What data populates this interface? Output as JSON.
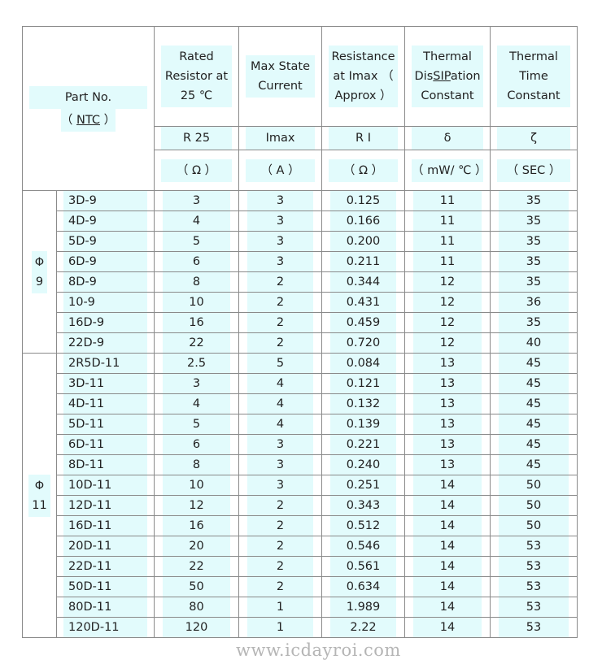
{
  "watermark": "www.icdayroi.com",
  "header": {
    "part_no": "Part No.",
    "part_no_sub": "（ NTC ）",
    "columns": [
      {
        "title": "Rated Resistor at 25 ℃",
        "symbol": "R 25",
        "unit": "（ Ω ）"
      },
      {
        "title": "Max State Current",
        "symbol": "Imax",
        "unit": "（ A ）"
      },
      {
        "title": "Resistance at Imax （ Approx ）",
        "symbol": "R I",
        "unit": "（ Ω ）"
      },
      {
        "title": "Thermal DisSIPation Constant",
        "symbol": "δ",
        "unit": "（ mW/ ℃ ）"
      },
      {
        "title": "Thermal Time Constant",
        "symbol": "ζ",
        "unit": "（ SEC ）"
      }
    ]
  },
  "groups": [
    {
      "label": "Φ 9",
      "rows": [
        [
          "3D-9",
          "3",
          "3",
          "0.125",
          "11",
          "35"
        ],
        [
          "4D-9",
          "4",
          "3",
          "0.166",
          "11",
          "35"
        ],
        [
          "5D-9",
          "5",
          "3",
          "0.200",
          "11",
          "35"
        ],
        [
          "6D-9",
          "6",
          "3",
          "0.211",
          "11",
          "35"
        ],
        [
          "8D-9",
          "8",
          "2",
          "0.344",
          "12",
          "35"
        ],
        [
          "10-9",
          "10",
          "2",
          "0.431",
          "12",
          "36"
        ],
        [
          "16D-9",
          "16",
          "2",
          "0.459",
          "12",
          "35"
        ],
        [
          "22D-9",
          "22",
          "2",
          "0.720",
          "12",
          "40"
        ]
      ]
    },
    {
      "label": "Φ 11",
      "rows": [
        [
          "2R5D-11",
          "2.5",
          "5",
          "0.084",
          "13",
          "45"
        ],
        [
          "3D-11",
          "3",
          "4",
          "0.121",
          "13",
          "45"
        ],
        [
          "4D-11",
          "4",
          "4",
          "0.132",
          "13",
          "45"
        ],
        [
          "5D-11",
          "5",
          "4",
          "0.139",
          "13",
          "45"
        ],
        [
          "6D-11",
          "6",
          "3",
          "0.221",
          "13",
          "45"
        ],
        [
          "8D-11",
          "8",
          "3",
          "0.240",
          "13",
          "45"
        ],
        [
          "10D-11",
          "10",
          "3",
          "0.251",
          "14",
          "50"
        ],
        [
          "12D-11",
          "12",
          "2",
          "0.343",
          "14",
          "50"
        ],
        [
          "16D-11",
          "16",
          "2",
          "0.512",
          "14",
          "50"
        ],
        [
          "20D-11",
          "20",
          "2",
          "0.546",
          "14",
          "53"
        ],
        [
          "22D-11",
          "22",
          "2",
          "0.561",
          "14",
          "53"
        ],
        [
          "50D-11",
          "50",
          "2",
          "0.634",
          "14",
          "53"
        ],
        [
          "80D-11",
          "80",
          "1",
          "1.989",
          "14",
          "53"
        ],
        [
          "120D-11",
          "120",
          "1",
          "2.22",
          "14",
          "53"
        ]
      ]
    }
  ]
}
